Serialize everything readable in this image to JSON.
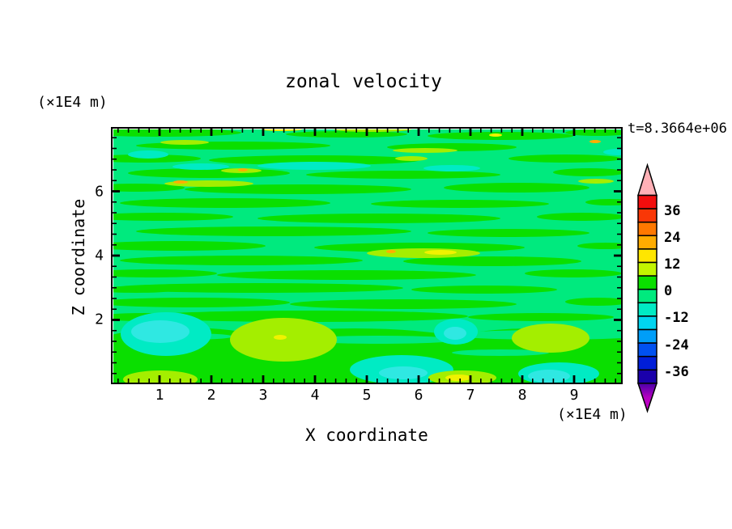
{
  "title": "zonal velocity",
  "chart_data": {
    "type": "heatmap",
    "title": "zonal velocity",
    "time": "t=8.3664e+06",
    "xlabel": "X coordinate",
    "ylabel": "Z coordinate",
    "x_units": "(×1E4 m)",
    "z_units": "(×1E4 m)",
    "xlim": [
      0.078,
      9.922
    ],
    "zlim": [
      0.025,
      7.975
    ],
    "x_major_ticks": [
      1,
      2,
      3,
      4,
      5,
      6,
      7,
      8,
      9
    ],
    "x_minor_step": 0.2,
    "z_major_ticks": [
      2,
      4,
      6
    ],
    "z_minor_step": 0.3333,
    "grid": false,
    "colorbar": {
      "max": 42,
      "min": -42,
      "step": 6,
      "labels": [
        "36",
        "24",
        "12",
        "0",
        "-12",
        "-24",
        "-36"
      ],
      "label_values": [
        36,
        24,
        12,
        0,
        -12,
        -24,
        -36
      ],
      "colors": [
        "#F20D0D",
        "#F93706",
        "#FF7800",
        "#FFAC00",
        "#FFE600",
        "#C3F500",
        "#0ADF00",
        "#00EA7E",
        "#00EBC4",
        "#00D5F0",
        "#009EF8",
        "#0051F0",
        "#001ED8",
        "#1A00AA"
      ],
      "over_color": "#FFB0B6",
      "under_gradient": [
        "#4A00A8",
        "#B400C0",
        "#C800C8"
      ]
    },
    "field": {
      "base": "#00EA7E",
      "palette": {
        "g": "#0ADF00",
        "s": "#00EA7E",
        "t": "#00EBC4",
        "c": "#2FE8E2",
        "h": "#A4EE00",
        "y": "#F0F200",
        "o": "#FFAE00"
      },
      "blobs": [
        [
          60,
          6,
          100,
          5,
          "g"
        ],
        [
          290,
          8,
          75,
          4,
          "g"
        ],
        [
          480,
          10,
          90,
          5,
          "g"
        ],
        [
          600,
          6,
          40,
          4,
          "g"
        ],
        [
          150,
          22,
          120,
          5,
          "g"
        ],
        [
          420,
          24,
          80,
          5,
          "g"
        ],
        [
          40,
          38,
          70,
          5,
          "g"
        ],
        [
          250,
          40,
          130,
          6,
          "g"
        ],
        [
          560,
          38,
          70,
          5,
          "g"
        ],
        [
          120,
          56,
          100,
          6,
          "g"
        ],
        [
          360,
          58,
          120,
          5,
          "g"
        ],
        [
          590,
          55,
          45,
          5,
          "g"
        ],
        [
          30,
          74,
          60,
          5,
          "g"
        ],
        [
          230,
          76,
          140,
          6,
          "g"
        ],
        [
          500,
          74,
          90,
          6,
          "g"
        ],
        [
          140,
          93,
          130,
          6,
          "g"
        ],
        [
          430,
          94,
          110,
          5,
          "g"
        ],
        [
          615,
          92,
          30,
          4,
          "g"
        ],
        [
          60,
          110,
          90,
          5,
          "g"
        ],
        [
          330,
          112,
          150,
          6,
          "g"
        ],
        [
          580,
          110,
          55,
          5,
          "g"
        ],
        [
          200,
          128,
          170,
          6,
          "g"
        ],
        [
          490,
          130,
          100,
          5,
          "g"
        ],
        [
          80,
          146,
          110,
          6,
          "g"
        ],
        [
          380,
          148,
          130,
          6,
          "g"
        ],
        [
          610,
          146,
          35,
          4,
          "g"
        ],
        [
          160,
          164,
          150,
          6,
          "g"
        ],
        [
          470,
          165,
          110,
          6,
          "g"
        ],
        [
          50,
          180,
          80,
          5,
          "g"
        ],
        [
          290,
          182,
          160,
          6,
          "g"
        ],
        [
          570,
          180,
          60,
          5,
          "g"
        ],
        [
          30,
          200,
          50,
          4,
          "g"
        ],
        [
          180,
          198,
          180,
          6,
          "g"
        ],
        [
          460,
          200,
          90,
          5,
          "g"
        ],
        [
          100,
          216,
          120,
          6,
          "g"
        ],
        [
          360,
          218,
          140,
          6,
          "g"
        ],
        [
          600,
          215,
          40,
          5,
          "g"
        ],
        [
          40,
          234,
          60,
          5,
          "g"
        ],
        [
          240,
          233,
          200,
          7,
          "g"
        ],
        [
          530,
          234,
          90,
          5,
          "g"
        ],
        [
          90,
          285,
          140,
          38,
          "g"
        ],
        [
          300,
          290,
          200,
          42,
          "g"
        ],
        [
          520,
          288,
          150,
          40,
          "g"
        ],
        [
          190,
          308,
          250,
          30,
          "g"
        ],
        [
          460,
          310,
          220,
          28,
          "g"
        ],
        [
          620,
          300,
          60,
          30,
          "g"
        ],
        [
          90,
          258,
          60,
          4,
          "s"
        ],
        [
          330,
          262,
          100,
          5,
          "s"
        ],
        [
          540,
          256,
          120,
          6,
          "s"
        ],
        [
          480,
          278,
          60,
          4,
          "s"
        ],
        [
          200,
          275,
          40,
          4,
          "s"
        ],
        [
          45,
          33,
          25,
          5,
          "t"
        ],
        [
          110,
          48,
          35,
          4,
          "t"
        ],
        [
          250,
          47,
          70,
          5,
          "t"
        ],
        [
          420,
          50,
          35,
          4,
          "t"
        ],
        [
          627,
          30,
          20,
          4,
          "t"
        ],
        [
          67,
          255,
          56,
          27,
          "t"
        ],
        [
          425,
          252,
          27,
          16,
          "t"
        ],
        [
          358,
          299,
          64,
          18,
          "t"
        ],
        [
          552,
          304,
          50,
          14,
          "t"
        ],
        [
          60,
          252,
          36,
          14,
          "c"
        ],
        [
          424,
          254,
          14,
          8,
          "c"
        ],
        [
          540,
          307,
          26,
          8,
          "c"
        ],
        [
          360,
          303,
          30,
          8,
          "c"
        ],
        [
          90,
          18,
          30,
          3,
          "h"
        ],
        [
          322,
          2,
          48,
          3,
          "h"
        ],
        [
          370,
          38,
          20,
          3,
          "h"
        ],
        [
          387,
          28,
          40,
          3,
          "h"
        ],
        [
          120,
          69,
          55,
          4,
          "h"
        ],
        [
          160,
          53,
          25,
          3,
          "h"
        ],
        [
          598,
          66,
          22,
          3,
          "h"
        ],
        [
          385,
          155,
          70,
          6,
          "h"
        ],
        [
          212,
          262,
          66,
          27,
          "h"
        ],
        [
          542,
          260,
          48,
          18,
          "h"
        ],
        [
          60,
          311,
          46,
          11,
          "h"
        ],
        [
          433,
          309,
          42,
          9,
          "h"
        ],
        [
          210,
          2,
          25,
          2,
          "y"
        ],
        [
          474,
          9,
          8,
          2,
          "y"
        ],
        [
          406,
          154,
          20,
          3,
          "y"
        ],
        [
          208,
          259,
          8,
          3,
          "y"
        ],
        [
          428,
          309,
          16,
          4,
          "y"
        ],
        [
          85,
          67,
          9,
          2,
          "o"
        ],
        [
          597,
          17,
          7,
          2,
          "o"
        ],
        [
          345,
          153,
          6,
          2,
          "o"
        ],
        [
          162,
          52,
          6,
          2,
          "o"
        ]
      ]
    }
  }
}
